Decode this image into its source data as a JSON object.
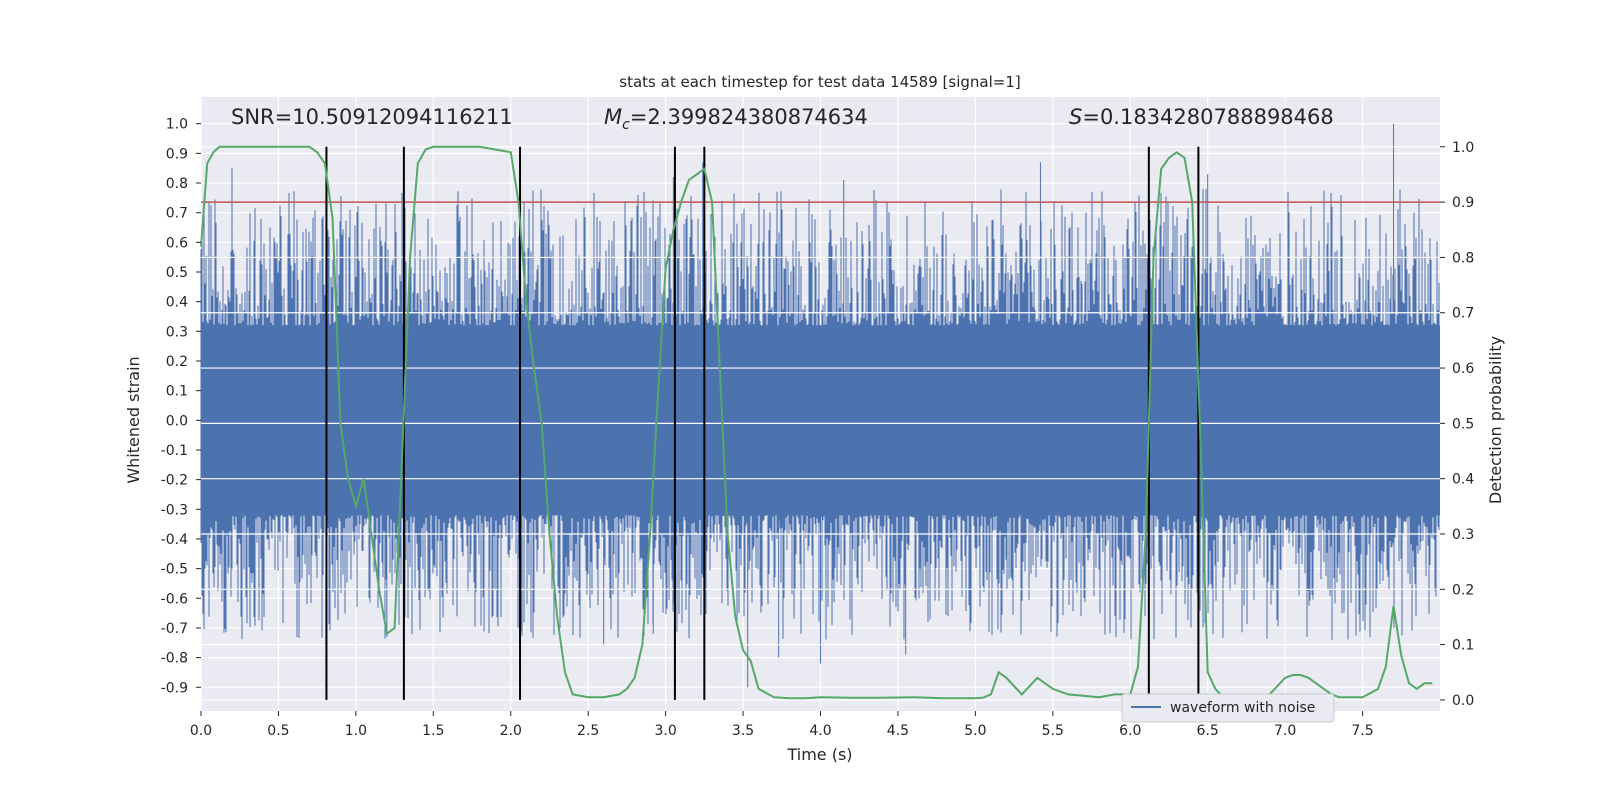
{
  "chart_data": {
    "type": "line",
    "title": "stats at each timestep for test data 14589 [signal=1]",
    "xlabel": "Time (s)",
    "ylabel": "Whitened strain",
    "y2label": "Detection probability",
    "xlim": [
      0.0,
      8.0
    ],
    "ylim": [
      -0.98,
      1.09
    ],
    "y2lim": [
      -0.02,
      1.09
    ],
    "xticks": [
      "0.0",
      "0.5",
      "1.0",
      "1.5",
      "2.0",
      "2.5",
      "3.0",
      "3.5",
      "4.0",
      "4.5",
      "5.0",
      "5.5",
      "6.0",
      "6.5",
      "7.0",
      "7.5"
    ],
    "yticks": [
      "1.0",
      "0.9",
      "0.8",
      "0.7",
      "0.6",
      "0.5",
      "0.4",
      "0.3",
      "0.2",
      "0.1",
      "0.0",
      "-0.1",
      "-0.2",
      "-0.3",
      "-0.4",
      "-0.5",
      "-0.6",
      "-0.7",
      "-0.8",
      "-0.9"
    ],
    "y2ticks": [
      "1.0",
      "0.9",
      "0.8",
      "0.7",
      "0.6",
      "0.5",
      "0.4",
      "0.3",
      "0.2",
      "0.1",
      "0.0"
    ],
    "annotations": {
      "snr": "SNR=10.50912094116211",
      "mc_symbol": "M",
      "mc_sub": "c",
      "mc_value": "=2.399824380874634",
      "s_symbol": "S",
      "s_value": "=0.1834280788898468"
    },
    "threshold": 0.9,
    "vlines": [
      0.81,
      1.31,
      2.06,
      3.06,
      3.25,
      6.12,
      6.44
    ],
    "grid": true,
    "legend": {
      "position": "bottom-right",
      "label": "waveform with noise"
    },
    "series": [
      {
        "name": "waveform with noise",
        "axis": "left",
        "color": "#4c72b0",
        "band": {
          "lower": -0.32,
          "upper": 0.32
        },
        "noise_extremes": {
          "min": -0.9,
          "max": 1.0
        }
      },
      {
        "axis": "right",
        "color": "#55a868",
        "x": [
          0.0,
          0.04,
          0.08,
          0.12,
          0.2,
          0.3,
          0.4,
          0.5,
          0.6,
          0.7,
          0.75,
          0.8,
          0.85,
          0.9,
          0.95,
          1.0,
          1.05,
          1.1,
          1.15,
          1.2,
          1.25,
          1.3,
          1.35,
          1.4,
          1.45,
          1.5,
          1.6,
          1.7,
          1.8,
          1.9,
          2.0,
          2.05,
          2.1,
          2.15,
          2.2,
          2.25,
          2.3,
          2.35,
          2.4,
          2.5,
          2.6,
          2.7,
          2.75,
          2.8,
          2.85,
          2.9,
          2.95,
          3.0,
          3.05,
          3.1,
          3.15,
          3.2,
          3.25,
          3.3,
          3.35,
          3.4,
          3.45,
          3.5,
          3.55,
          3.6,
          3.7,
          3.8,
          3.9,
          4.0,
          4.2,
          4.4,
          4.6,
          4.8,
          5.0,
          5.05,
          5.1,
          5.15,
          5.2,
          5.3,
          5.4,
          5.5,
          5.6,
          5.8,
          5.9,
          6.0,
          6.05,
          6.1,
          6.15,
          6.2,
          6.25,
          6.3,
          6.35,
          6.4,
          6.45,
          6.5,
          6.55,
          6.6,
          6.7,
          6.8,
          6.9,
          7.0,
          7.05,
          7.1,
          7.15,
          7.2,
          7.25,
          7.3,
          7.35,
          7.4,
          7.5,
          7.6,
          7.65,
          7.7,
          7.75,
          7.8,
          7.85,
          7.9,
          7.95
        ],
        "y": [
          0.82,
          0.97,
          0.99,
          1.0,
          1.0,
          1.0,
          1.0,
          1.0,
          1.0,
          1.0,
          0.99,
          0.97,
          0.87,
          0.5,
          0.4,
          0.35,
          0.4,
          0.3,
          0.2,
          0.12,
          0.13,
          0.45,
          0.8,
          0.97,
          0.995,
          1.0,
          1.0,
          1.0,
          1.0,
          0.995,
          0.99,
          0.9,
          0.72,
          0.6,
          0.5,
          0.3,
          0.15,
          0.05,
          0.01,
          0.005,
          0.005,
          0.01,
          0.02,
          0.04,
          0.1,
          0.3,
          0.55,
          0.78,
          0.85,
          0.9,
          0.94,
          0.95,
          0.96,
          0.9,
          0.6,
          0.3,
          0.15,
          0.09,
          0.07,
          0.02,
          0.005,
          0.003,
          0.003,
          0.005,
          0.004,
          0.004,
          0.005,
          0.003,
          0.003,
          0.004,
          0.01,
          0.05,
          0.04,
          0.01,
          0.04,
          0.02,
          0.01,
          0.005,
          0.01,
          0.01,
          0.06,
          0.3,
          0.8,
          0.96,
          0.98,
          0.99,
          0.98,
          0.9,
          0.5,
          0.05,
          0.02,
          0.005,
          0.005,
          0.008,
          0.01,
          0.04,
          0.045,
          0.045,
          0.04,
          0.03,
          0.02,
          0.01,
          0.005,
          0.005,
          0.005,
          0.02,
          0.06,
          0.17,
          0.08,
          0.03,
          0.02,
          0.03,
          0.03
        ]
      }
    ]
  }
}
